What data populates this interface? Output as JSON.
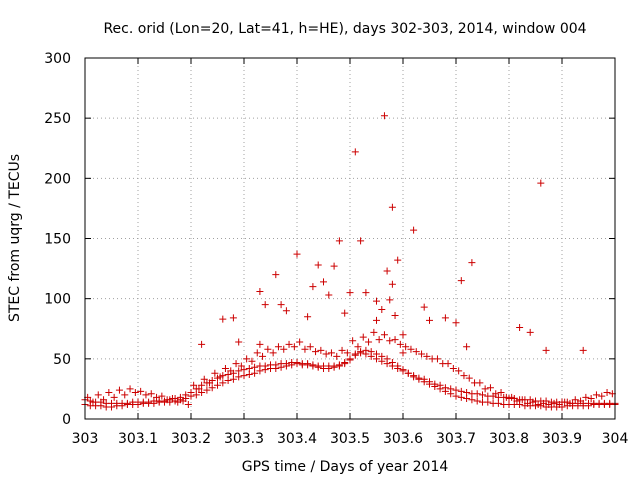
{
  "chart_data": {
    "type": "scatter",
    "title": "Rec. orid (Lon=20, Lat=41, h=HE), days 302-303, 2014, window 004",
    "xlabel": "GPS time / Days of year 2014",
    "ylabel": "STEC from uqrg / TECUs",
    "xlim": [
      303,
      304
    ],
    "ylim": [
      0,
      300
    ],
    "xticks": [
      303,
      303.1,
      303.2,
      303.3,
      303.4,
      303.5,
      303.6,
      303.7,
      303.8,
      303.9,
      304
    ],
    "xtick_labels": [
      "303",
      "303.1",
      "303.2",
      "303.3",
      "303.4",
      "303.5",
      "303.6",
      "303.7",
      "303.8",
      "303.9",
      "304"
    ],
    "yticks": [
      0,
      50,
      100,
      150,
      200,
      250,
      300
    ],
    "ytick_labels": [
      "0",
      "50",
      "100",
      "150",
      "200",
      "250",
      "300"
    ],
    "grid": true,
    "marker": "+",
    "color": "#cc0000",
    "series": [
      {
        "name": "tracks",
        "x": [
          303.0,
          303.01,
          303.02,
          303.03,
          303.04,
          303.05,
          303.06,
          303.07,
          303.08,
          303.09,
          303.1,
          303.11,
          303.12,
          303.13,
          303.14,
          303.15,
          303.16,
          303.17,
          303.18,
          303.19,
          303.2,
          303.21,
          303.22,
          303.23,
          303.24,
          303.25,
          303.26,
          303.27,
          303.28,
          303.29,
          303.3,
          303.31,
          303.32,
          303.33,
          303.34,
          303.35,
          303.36,
          303.37,
          303.38,
          303.39,
          303.4,
          303.41,
          303.42,
          303.43,
          303.44,
          303.45,
          303.46,
          303.47,
          303.48,
          303.49,
          303.5,
          303.51,
          303.52,
          303.53,
          303.54,
          303.55,
          303.56,
          303.57,
          303.58,
          303.59,
          303.6,
          303.61,
          303.62,
          303.63,
          303.64,
          303.65,
          303.66,
          303.67,
          303.68,
          303.69,
          303.7,
          303.71,
          303.72,
          303.73,
          303.74,
          303.75,
          303.76,
          303.77,
          303.78,
          303.79,
          303.8,
          303.81,
          303.82,
          303.83,
          303.84,
          303.85,
          303.86,
          303.87,
          303.88,
          303.89,
          303.9,
          303.91,
          303.92,
          303.93,
          303.94,
          303.95,
          303.96,
          303.97,
          303.98,
          303.99,
          304.0,
          303.0,
          303.01,
          303.02,
          303.03,
          303.04,
          303.05,
          303.06,
          303.07,
          303.08,
          303.09,
          303.1,
          303.11,
          303.12,
          303.13,
          303.14,
          303.15,
          303.16,
          303.17,
          303.18,
          303.19,
          303.2,
          303.21,
          303.22,
          303.23,
          303.24,
          303.25,
          303.26,
          303.27,
          303.28,
          303.29,
          303.3,
          303.31,
          303.32,
          303.33,
          303.34,
          303.35,
          303.36,
          303.37,
          303.38,
          303.39,
          303.4,
          303.41,
          303.42,
          303.43,
          303.44,
          303.45,
          303.46,
          303.47,
          303.48,
          303.49,
          303.5,
          303.51,
          303.52,
          303.53,
          303.54,
          303.55,
          303.56,
          303.57,
          303.58,
          303.59,
          303.6,
          303.61,
          303.62,
          303.63,
          303.64,
          303.65,
          303.66,
          303.67,
          303.68,
          303.69,
          303.7,
          303.71,
          303.72,
          303.73,
          303.74,
          303.75,
          303.76,
          303.77,
          303.78,
          303.79,
          303.8,
          303.81,
          303.82,
          303.83,
          303.84,
          303.85,
          303.86,
          303.87,
          303.88,
          303.89,
          303.9,
          303.91,
          303.92,
          303.93,
          303.94,
          303.95,
          303.96,
          303.97,
          303.98,
          303.99,
          304.0,
          303.005,
          303.025,
          303.045,
          303.065,
          303.085,
          303.105,
          303.125,
          303.145,
          303.165,
          303.185,
          303.205,
          303.225,
          303.245,
          303.265,
          303.285,
          303.305,
          303.325,
          303.345,
          303.365,
          303.385,
          303.405,
          303.425,
          303.445,
          303.465,
          303.485,
          303.505,
          303.525,
          303.545,
          303.565,
          303.585,
          303.605,
          303.625,
          303.645,
          303.665,
          303.685,
          303.705,
          303.725,
          303.745,
          303.765,
          303.785,
          303.805,
          303.825,
          303.845,
          303.865,
          303.885,
          303.905,
          303.925,
          303.945,
          303.965,
          303.985,
          303.015,
          303.035,
          303.055,
          303.075,
          303.095,
          303.115,
          303.135,
          303.155,
          303.175,
          303.195,
          303.215,
          303.235,
          303.255,
          303.275,
          303.295,
          303.315,
          303.335,
          303.355,
          303.375,
          303.395,
          303.415,
          303.435,
          303.455,
          303.475,
          303.495,
          303.515,
          303.535,
          303.555,
          303.575,
          303.595,
          303.615,
          303.635,
          303.655,
          303.675,
          303.695,
          303.715,
          303.735,
          303.755,
          303.775,
          303.795,
          303.815,
          303.835,
          303.855,
          303.875,
          303.895,
          303.915,
          303.935,
          303.955,
          303.975,
          303.995,
          303.22,
          303.26,
          303.28,
          303.29,
          303.33,
          303.34,
          303.36,
          303.38,
          303.4,
          303.44,
          303.45,
          303.46,
          303.47,
          303.48,
          303.49,
          303.5,
          303.52,
          303.53,
          303.55,
          303.56,
          303.565,
          303.57,
          303.575,
          303.58,
          303.585,
          303.59,
          303.6,
          303.62,
          303.64,
          303.65,
          303.68,
          303.7,
          303.71,
          303.72,
          303.73,
          303.82,
          303.84,
          303.86,
          303.87,
          303.94,
          303.33,
          303.37,
          303.42,
          303.43,
          303.51,
          303.55,
          303.58,
          303.6
        ],
        "y": [
          16,
          15,
          14,
          14,
          13,
          13,
          13,
          13,
          13,
          14,
          14,
          14,
          14,
          15,
          15,
          15,
          16,
          17,
          18,
          20,
          22,
          25,
          28,
          30,
          32,
          34,
          36,
          37,
          38,
          40,
          41,
          42,
          43,
          44,
          44,
          45,
          45,
          46,
          46,
          47,
          47,
          46,
          46,
          45,
          44,
          44,
          44,
          44,
          45,
          47,
          50,
          54,
          55,
          54,
          52,
          50,
          48,
          46,
          44,
          42,
          40,
          38,
          36,
          34,
          33,
          31,
          29,
          28,
          26,
          25,
          24,
          23,
          22,
          21,
          21,
          20,
          19,
          19,
          18,
          18,
          17,
          17,
          16,
          16,
          16,
          15,
          15,
          15,
          14,
          14,
          14,
          14,
          13,
          13,
          13,
          13,
          13,
          13,
          13,
          13,
          13,
          12,
          11,
          11,
          11,
          10,
          10,
          11,
          11,
          12,
          12,
          12,
          13,
          13,
          13,
          14,
          14,
          14,
          15,
          16,
          17,
          19,
          20,
          22,
          24,
          26,
          28,
          30,
          32,
          33,
          35,
          36,
          37,
          38,
          40,
          41,
          42,
          42,
          43,
          44,
          45,
          46,
          45,
          45,
          44,
          43,
          42,
          42,
          43,
          44,
          46,
          49,
          53,
          56,
          57,
          56,
          54,
          52,
          50,
          47,
          44,
          41,
          38,
          35,
          33,
          31,
          29,
          27,
          25,
          23,
          21,
          19,
          18,
          17,
          16,
          15,
          14,
          14,
          13,
          13,
          12,
          12,
          12,
          12,
          11,
          11,
          11,
          11,
          10,
          10,
          10,
          10,
          11,
          11,
          11,
          11,
          11,
          12,
          12,
          12,
          12,
          12,
          18,
          20,
          22,
          24,
          25,
          23,
          21,
          19,
          17,
          15,
          28,
          33,
          38,
          42,
          46,
          50,
          55,
          58,
          60,
          62,
          64,
          60,
          57,
          55,
          57,
          65,
          68,
          72,
          70,
          66,
          60,
          56,
          52,
          50,
          46,
          40,
          34,
          30,
          26,
          22,
          18,
          16,
          14,
          13,
          13,
          14,
          16,
          18,
          20,
          22,
          14,
          16,
          18,
          20,
          22,
          20,
          18,
          16,
          14,
          12,
          25,
          30,
          35,
          40,
          44,
          48,
          52,
          55,
          58,
          60,
          58,
          56,
          54,
          52,
          55,
          60,
          64,
          66,
          65,
          62,
          58,
          54,
          50,
          46,
          42,
          36,
          30,
          25,
          21,
          18,
          15,
          13,
          12,
          12,
          12,
          13,
          15,
          17,
          19,
          21,
          62,
          83,
          84,
          64,
          106,
          95,
          120,
          90,
          137,
          128,
          114,
          103,
          127,
          148,
          88,
          105,
          148,
          105,
          82,
          91,
          252,
          123,
          99,
          176,
          86,
          132,
          55,
          157,
          93,
          82,
          84,
          80,
          115,
          60,
          130,
          76,
          72,
          196,
          57,
          57,
          62,
          95,
          85,
          110,
          222,
          98,
          112,
          70
        ]
      }
    ]
  }
}
